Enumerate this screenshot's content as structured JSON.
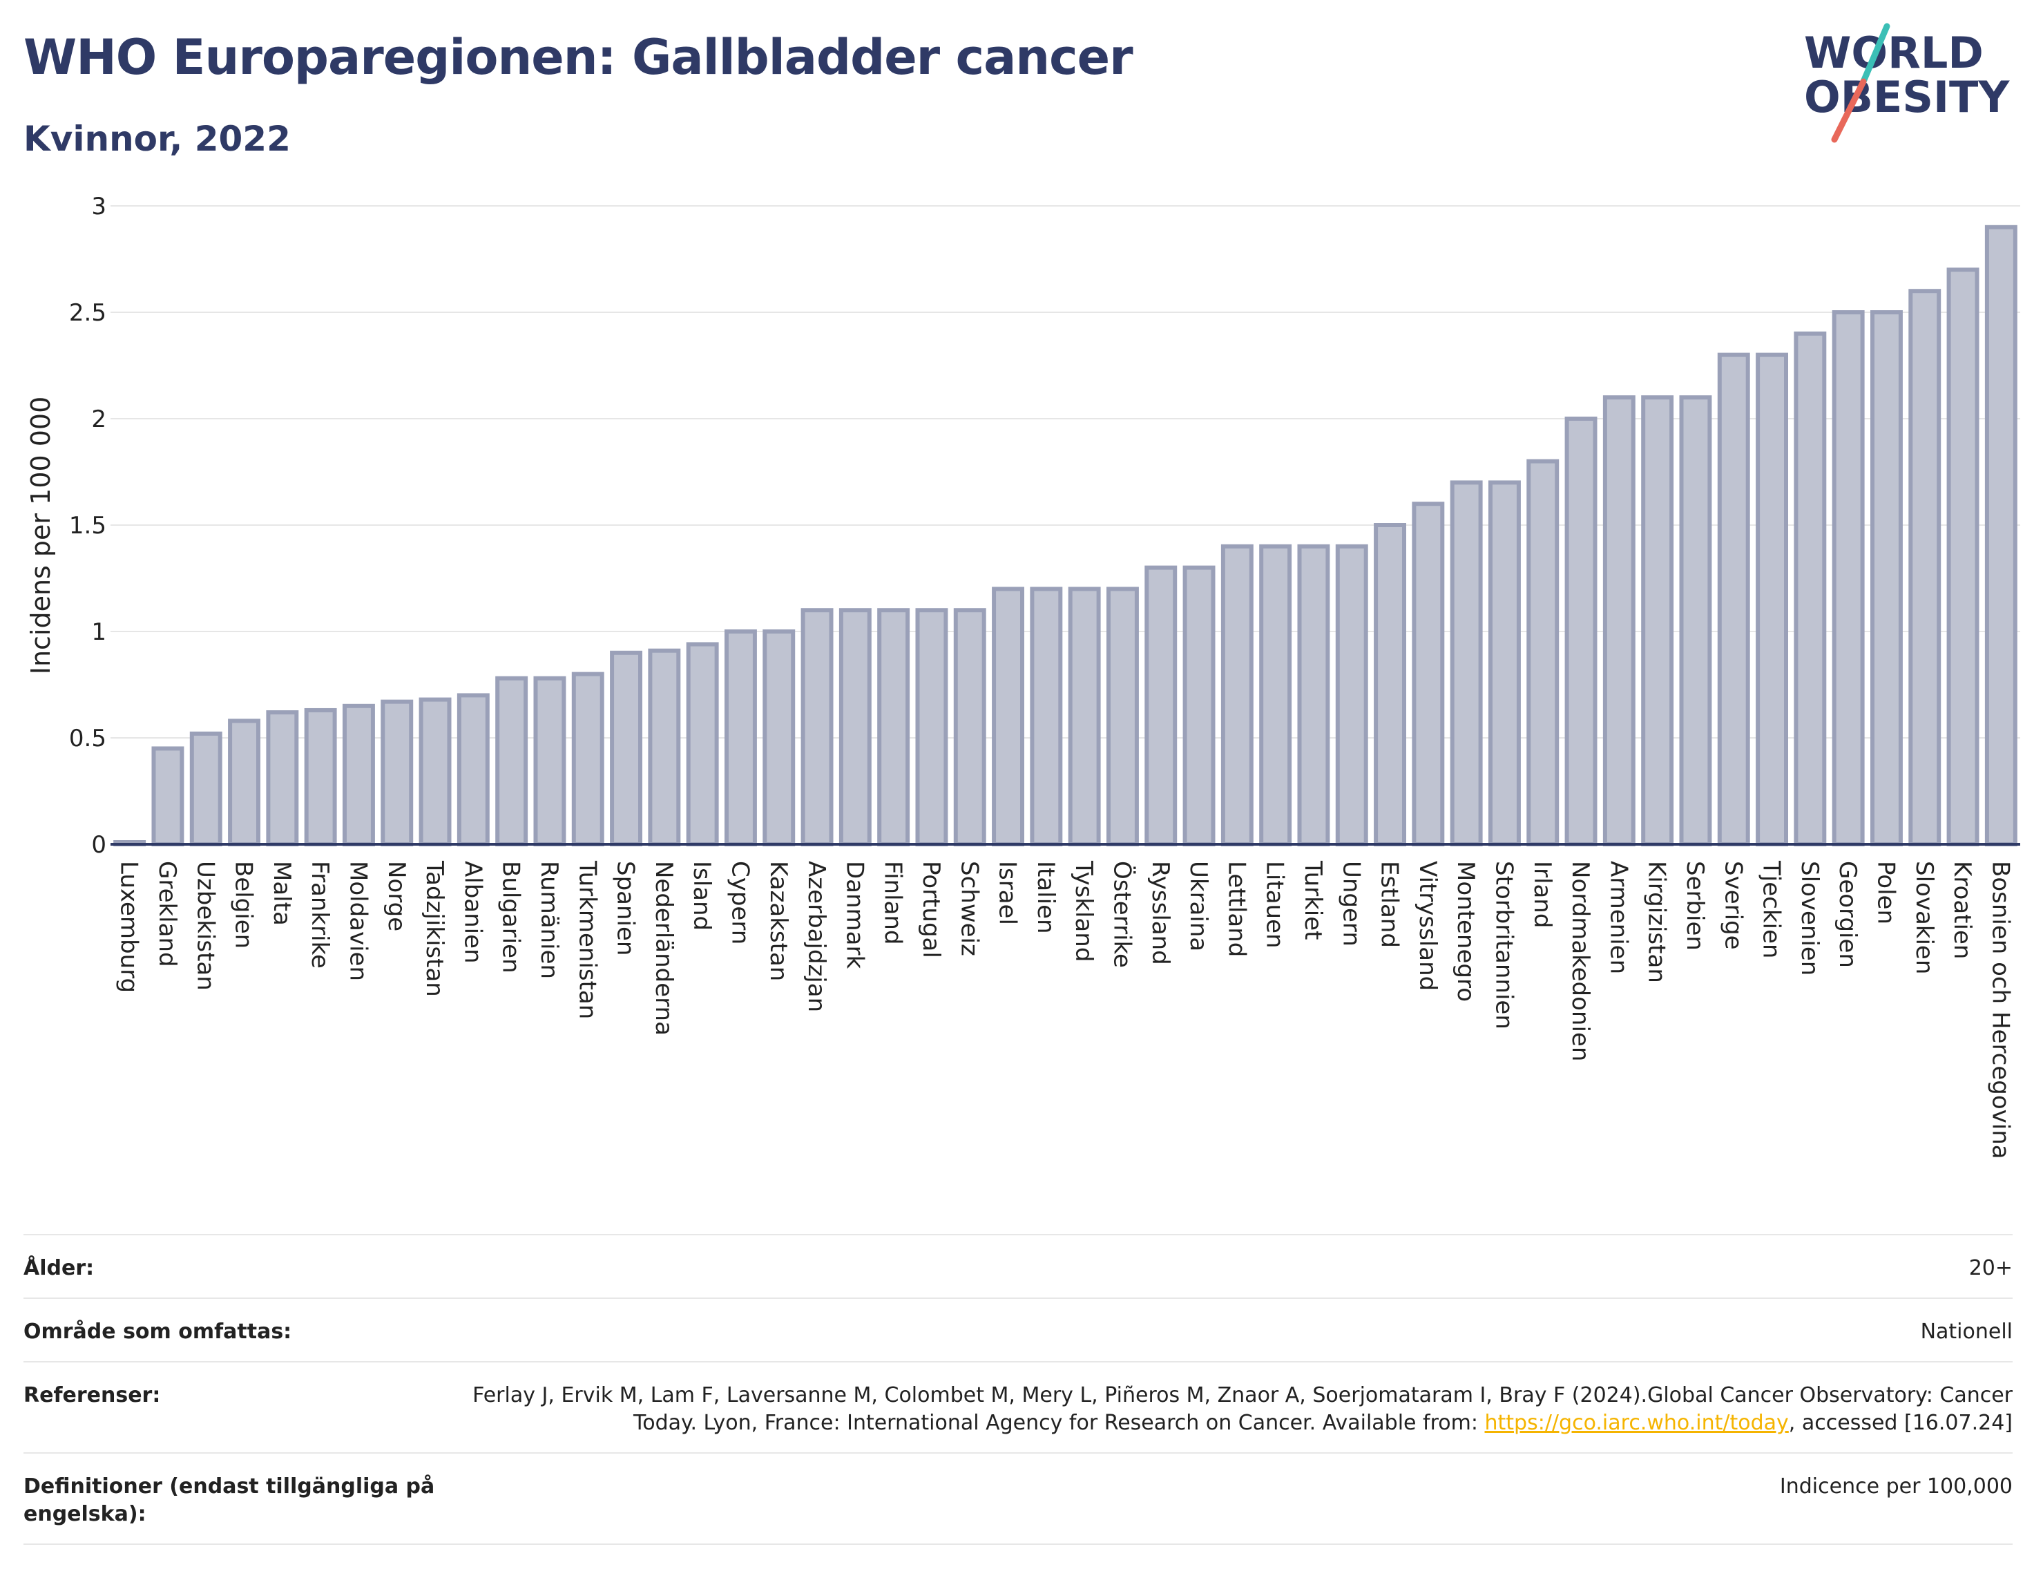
{
  "header": {
    "title": "WHO Europaregionen: Gallbladder cancer",
    "subtitle": "Kvinnor, 2022",
    "logo_line1": "WORLD",
    "logo_line2": "OBESITY"
  },
  "colors": {
    "title": "#2f3a66",
    "bar_fill": "#bfc3d1",
    "bar_stroke": "#9aa0b8",
    "axis": "#2f3a66",
    "grid": "#e6e6e6",
    "logo_teal": "#3bbfb6",
    "logo_coral": "#e8685a",
    "link": "#f5b400"
  },
  "chart_data": {
    "type": "bar",
    "title": "WHO Europaregionen: Gallbladder cancer",
    "subtitle": "Kvinnor, 2022",
    "xlabel": "",
    "ylabel": "Incidens per 100 000",
    "ylim": [
      0,
      3
    ],
    "yticks": [
      0,
      0.5,
      1,
      1.5,
      2,
      2.5,
      3
    ],
    "ytick_labels": [
      "0",
      "0.5",
      "1",
      "1.5",
      "2",
      "2.5",
      "3"
    ],
    "grid": true,
    "categories": [
      "Luxemburg",
      "Grekland",
      "Uzbekistan",
      "Belgien",
      "Malta",
      "Frankrike",
      "Moldavien",
      "Norge",
      "Tadzjikistan",
      "Albanien",
      "Bulgarien",
      "Rumänien",
      "Turkmenistan",
      "Spanien",
      "Nederländerna",
      "Island",
      "Cypern",
      "Kazakstan",
      "Azerbajdzjan",
      "Danmark",
      "Finland",
      "Portugal",
      "Schweiz",
      "Israel",
      "Italien",
      "Tyskland",
      "Österrike",
      "Ryssland",
      "Ukraina",
      "Lettland",
      "Litauen",
      "Turkiet",
      "Ungern",
      "Estland",
      "Vitryssland",
      "Montenegro",
      "Storbritannien",
      "Irland",
      "Nordmakedonien",
      "Armenien",
      "Kirgizistan",
      "Serbien",
      "Sverige",
      "Tjeckien",
      "Slovenien",
      "Georgien",
      "Polen",
      "Slovakien",
      "Kroatien",
      "Bosnien och Hercegovina"
    ],
    "values": [
      0.0,
      0.45,
      0.52,
      0.58,
      0.62,
      0.63,
      0.65,
      0.67,
      0.68,
      0.7,
      0.78,
      0.78,
      0.8,
      0.9,
      0.91,
      0.94,
      1.0,
      1.0,
      1.1,
      1.1,
      1.1,
      1.1,
      1.1,
      1.2,
      1.2,
      1.2,
      1.2,
      1.3,
      1.3,
      1.4,
      1.4,
      1.4,
      1.4,
      1.5,
      1.6,
      1.7,
      1.7,
      1.8,
      2.0,
      2.1,
      2.1,
      2.1,
      2.3,
      2.3,
      2.4,
      2.5,
      2.5,
      2.6,
      2.7,
      2.9
    ]
  },
  "meta": [
    {
      "label": "Ålder:",
      "value": "20+"
    },
    {
      "label": "Område som omfattas:",
      "value": "Nationell"
    },
    {
      "label": "Referenser:",
      "value_pre": "Ferlay J, Ervik M, Lam F, Laversanne M, Colombet M, Mery L, Piñeros M, Znaor A, Soerjomataram I, Bray F (2024).Global Cancer Observatory: Cancer Today. Lyon, France: International Agency for Research on Cancer. Available from: ",
      "link": "https://gco.iarc.who.int/today",
      "value_post": ", accessed [16.07.24]"
    },
    {
      "label": "Definitioner (endast tillgängliga på engelska):",
      "value": "Indicence per 100,000"
    }
  ]
}
